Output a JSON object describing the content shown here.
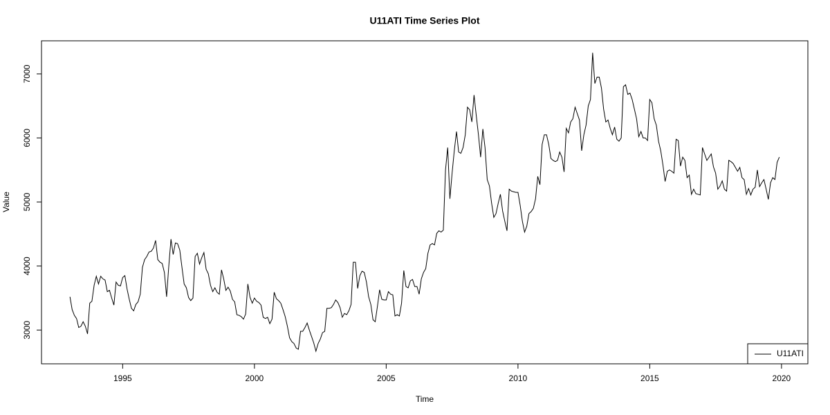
{
  "chart_data": {
    "type": "line",
    "title": "U11ATI Time Series Plot",
    "x_label": "Time",
    "y_label": "Value",
    "xlim": [
      1991.92,
      2021.0
    ],
    "ylim": [
      2473,
      7517
    ],
    "xticks": [
      1995,
      2000,
      2005,
      2010,
      2015,
      2020
    ],
    "yticks": [
      3000,
      4000,
      5000,
      6000,
      7000
    ],
    "legend": "bottom-right",
    "x": [
      1993,
      1993.083,
      1993.167,
      1993.25,
      1993.333,
      1993.417,
      1993.5,
      1993.583,
      1993.667,
      1993.75,
      1993.833,
      1993.917,
      1994,
      1994.083,
      1994.167,
      1994.25,
      1994.333,
      1994.417,
      1994.5,
      1994.583,
      1994.667,
      1994.75,
      1994.833,
      1994.917,
      1995,
      1995.083,
      1995.167,
      1995.25,
      1995.333,
      1995.417,
      1995.5,
      1995.583,
      1995.667,
      1995.75,
      1995.833,
      1995.917,
      1996,
      1996.083,
      1996.167,
      1996.25,
      1996.333,
      1996.417,
      1996.5,
      1996.583,
      1996.667,
      1996.75,
      1996.833,
      1996.917,
      1997,
      1997.083,
      1997.167,
      1997.25,
      1997.333,
      1997.417,
      1997.5,
      1997.583,
      1997.667,
      1997.75,
      1997.833,
      1997.917,
      1998,
      1998.083,
      1998.167,
      1998.25,
      1998.333,
      1998.417,
      1998.5,
      1998.583,
      1998.667,
      1998.75,
      1998.833,
      1998.917,
      1999,
      1999.083,
      1999.167,
      1999.25,
      1999.333,
      1999.417,
      1999.5,
      1999.583,
      1999.667,
      1999.75,
      1999.833,
      1999.917,
      2000,
      2000.083,
      2000.167,
      2000.25,
      2000.333,
      2000.417,
      2000.5,
      2000.583,
      2000.667,
      2000.75,
      2000.833,
      2000.917,
      2001,
      2001.083,
      2001.167,
      2001.25,
      2001.333,
      2001.417,
      2001.5,
      2001.583,
      2001.667,
      2001.75,
      2001.833,
      2001.917,
      2002,
      2002.083,
      2002.167,
      2002.25,
      2002.333,
      2002.417,
      2002.5,
      2002.583,
      2002.667,
      2002.75,
      2002.833,
      2002.917,
      2003,
      2003.083,
      2003.167,
      2003.25,
      2003.333,
      2003.417,
      2003.5,
      2003.583,
      2003.667,
      2003.75,
      2003.833,
      2003.917,
      2004,
      2004.083,
      2004.167,
      2004.25,
      2004.333,
      2004.417,
      2004.5,
      2004.583,
      2004.667,
      2004.75,
      2004.833,
      2004.917,
      2005,
      2005.083,
      2005.167,
      2005.25,
      2005.333,
      2005.417,
      2005.5,
      2005.583,
      2005.667,
      2005.75,
      2005.833,
      2005.917,
      2006,
      2006.083,
      2006.167,
      2006.25,
      2006.333,
      2006.417,
      2006.5,
      2006.583,
      2006.667,
      2006.75,
      2006.833,
      2006.917,
      2007,
      2007.083,
      2007.167,
      2007.25,
      2007.333,
      2007.417,
      2007.5,
      2007.583,
      2007.667,
      2007.75,
      2007.833,
      2007.917,
      2008,
      2008.083,
      2008.167,
      2008.25,
      2008.333,
      2008.417,
      2008.5,
      2008.583,
      2008.667,
      2008.75,
      2008.833,
      2008.917,
      2009,
      2009.083,
      2009.167,
      2009.25,
      2009.333,
      2009.417,
      2009.5,
      2009.583,
      2009.667,
      2009.75,
      2009.833,
      2009.917,
      2010,
      2010.083,
      2010.167,
      2010.25,
      2010.333,
      2010.417,
      2010.5,
      2010.583,
      2010.667,
      2010.75,
      2010.833,
      2010.917,
      2011,
      2011.083,
      2011.167,
      2011.25,
      2011.333,
      2011.417,
      2011.5,
      2011.583,
      2011.667,
      2011.75,
      2011.833,
      2011.917,
      2012,
      2012.083,
      2012.167,
      2012.25,
      2012.333,
      2012.417,
      2012.5,
      2012.583,
      2012.667,
      2012.75,
      2012.833,
      2012.917,
      2013,
      2013.083,
      2013.167,
      2013.25,
      2013.333,
      2013.417,
      2013.5,
      2013.583,
      2013.667,
      2013.75,
      2013.833,
      2013.917,
      2014,
      2014.083,
      2014.167,
      2014.25,
      2014.333,
      2014.417,
      2014.5,
      2014.583,
      2014.667,
      2014.75,
      2014.833,
      2014.917,
      2015,
      2015.083,
      2015.167,
      2015.25,
      2015.333,
      2015.417,
      2015.5,
      2015.583,
      2015.667,
      2015.75,
      2015.833,
      2015.917,
      2016,
      2016.083,
      2016.167,
      2016.25,
      2016.333,
      2016.417,
      2016.5,
      2016.583,
      2016.667,
      2016.75,
      2016.833,
      2016.917,
      2017,
      2017.083,
      2017.167,
      2017.25,
      2017.333,
      2017.417,
      2017.5,
      2017.583,
      2017.667,
      2017.75,
      2017.833,
      2017.917,
      2018,
      2018.083,
      2018.167,
      2018.25,
      2018.333,
      2018.417,
      2018.5,
      2018.583,
      2018.667,
      2018.75,
      2018.833,
      2018.917,
      2019,
      2019.083,
      2019.167,
      2019.25,
      2019.333,
      2019.417,
      2019.5,
      2019.583,
      2019.667,
      2019.75,
      2019.833,
      2019.917
    ],
    "series": [
      {
        "name": "U11ATI",
        "color": "#000000",
        "values": [
          3520,
          3320,
          3230,
          3180,
          3040,
          3060,
          3130,
          3060,
          2940,
          3420,
          3450,
          3700,
          3840,
          3720,
          3840,
          3800,
          3780,
          3600,
          3620,
          3500,
          3390,
          3750,
          3700,
          3690,
          3820,
          3850,
          3640,
          3480,
          3340,
          3300,
          3400,
          3440,
          3560,
          3980,
          4100,
          4150,
          4220,
          4230,
          4280,
          4400,
          4100,
          4060,
          4040,
          3900,
          3520,
          4000,
          4420,
          4180,
          4360,
          4350,
          4250,
          3980,
          3720,
          3660,
          3510,
          3460,
          3500,
          4150,
          4200,
          4030,
          4130,
          4210,
          3950,
          3880,
          3700,
          3600,
          3660,
          3590,
          3560,
          3940,
          3800,
          3620,
          3670,
          3610,
          3480,
          3440,
          3240,
          3230,
          3210,
          3170,
          3250,
          3720,
          3510,
          3420,
          3500,
          3450,
          3430,
          3390,
          3200,
          3180,
          3200,
          3100,
          3170,
          3590,
          3490,
          3460,
          3420,
          3320,
          3210,
          3060,
          2880,
          2820,
          2790,
          2720,
          2700,
          2980,
          2980,
          3040,
          3110,
          3000,
          2900,
          2800,
          2670,
          2790,
          2860,
          2960,
          2980,
          3340,
          3340,
          3350,
          3400,
          3470,
          3430,
          3350,
          3200,
          3260,
          3240,
          3300,
          3400,
          4060,
          4060,
          3650,
          3850,
          3920,
          3900,
          3750,
          3520,
          3400,
          3160,
          3130,
          3370,
          3630,
          3480,
          3470,
          3470,
          3600,
          3560,
          3550,
          3220,
          3240,
          3220,
          3420,
          3930,
          3680,
          3660,
          3770,
          3790,
          3680,
          3680,
          3560,
          3800,
          3900,
          3960,
          4200,
          4330,
          4350,
          4330,
          4510,
          4550,
          4530,
          4560,
          5500,
          5850,
          5050,
          5450,
          5800,
          6100,
          5780,
          5760,
          5850,
          6050,
          6480,
          6440,
          6250,
          6670,
          6350,
          6050,
          5700,
          6140,
          5850,
          5350,
          5250,
          4980,
          4760,
          4820,
          4980,
          5120,
          4860,
          4700,
          4550,
          5200,
          5170,
          5160,
          5150,
          5150,
          4950,
          4700,
          4530,
          4620,
          4820,
          4850,
          4900,
          5050,
          5400,
          5270,
          5900,
          6050,
          6050,
          5900,
          5680,
          5650,
          5630,
          5650,
          5780,
          5700,
          5470,
          6150,
          6080,
          6250,
          6300,
          6480,
          6380,
          6280,
          5800,
          6050,
          6200,
          6500,
          6600,
          7330,
          6850,
          6950,
          6950,
          6780,
          6450,
          6250,
          6280,
          6150,
          6050,
          6170,
          5980,
          5950,
          6000,
          6800,
          6830,
          6680,
          6700,
          6600,
          6450,
          6300,
          6020,
          6100,
          6000,
          6000,
          5960,
          6600,
          6550,
          6300,
          6200,
          5950,
          5800,
          5580,
          5320,
          5480,
          5500,
          5480,
          5450,
          5980,
          5960,
          5560,
          5700,
          5650,
          5380,
          5420,
          5120,
          5200,
          5130,
          5120,
          5110,
          5850,
          5750,
          5650,
          5700,
          5750,
          5550,
          5450,
          5200,
          5250,
          5330,
          5200,
          5170,
          5650,
          5630,
          5600,
          5540,
          5480,
          5540,
          5380,
          5350,
          5120,
          5210,
          5110,
          5200,
          5230,
          5500,
          5240,
          5300,
          5350,
          5200,
          5040,
          5300,
          5380,
          5350,
          5620,
          5700
        ]
      }
    ]
  }
}
